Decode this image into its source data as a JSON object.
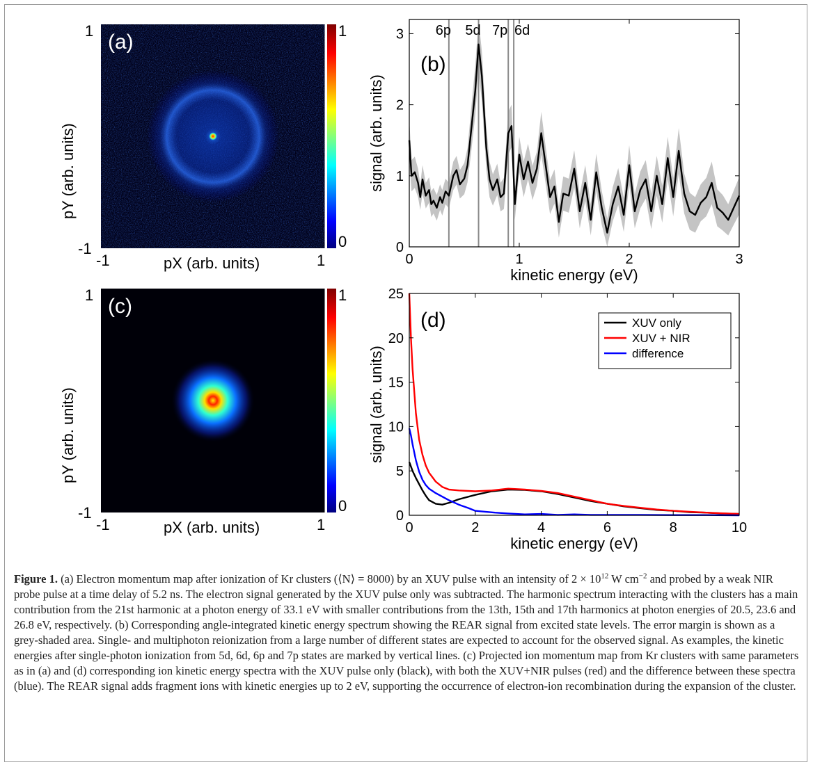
{
  "figure": {
    "panels": {
      "a": {
        "label": "(a)",
        "xlabel": "pX (arb. units)",
        "ylabel": "pY (arb. units)",
        "x_ticks": [
          "-1",
          "1"
        ],
        "y_ticks": [
          "1",
          "-1"
        ],
        "colorbar_ticks": [
          "1",
          "0"
        ]
      },
      "c": {
        "label": "(c)",
        "xlabel": "pX (arb. units)",
        "ylabel": "pY (arb. units)",
        "x_ticks": [
          "-1",
          "1"
        ],
        "y_ticks": [
          "1",
          "-1"
        ],
        "colorbar_ticks": [
          "1",
          "0"
        ]
      }
    },
    "caption": {
      "lead": "Figure 1.",
      "text_1": " (a) Electron momentum map after ionization of Kr clusters (⟨N⟩ = 8000) by an XUV pulse with an intensity of 2 × 10",
      "sup_1": "12",
      "text_2": " W cm",
      "sup_2": "−2",
      "text_3": " and probed by a weak NIR probe pulse at a time delay of 5.2 ns. The electron signal generated by the XUV pulse only was subtracted. The harmonic spectrum interacting with the clusters has a main contribution from the 21st harmonic at a photon energy of 33.1 eV with smaller contributions from the 13th, 15th and 17th harmonics at photon energies of 20.5, 23.6 and 26.8 eV, respectively. (b) Corresponding angle-integrated kinetic energy spectrum showing the REAR signal from excited state levels. The error margin is shown as a grey-shaded area. Single- and multiphoton reionization from a large number of different states are expected to account for the observed signal. As examples, the kinetic energies after single-photon ionization from 5d, 6d, 6p and 7p states are marked by vertical lines. (c) Projected ion momentum map from Kr clusters with same parameters as in (a) and (d) corresponding ion kinetic energy spectra with the XUV pulse only (black), with both the XUV+NIR pulses (red) and the difference between these spectra (blue). The REAR signal adds fragment ions with kinetic energies up to 2 eV, supporting the occurrence of electron-ion recombination during the expansion of the cluster."
    }
  },
  "chart_data": [
    {
      "panel": "b",
      "type": "line",
      "label": "(b)",
      "xlabel": "kinetic energy (eV)",
      "ylabel": "signal (arb. units)",
      "xlim": [
        0,
        3
      ],
      "ylim": [
        0,
        3.2
      ],
      "x_ticks": [
        0,
        1,
        2,
        3
      ],
      "y_ticks": [
        0,
        1,
        2,
        3
      ],
      "grid": false,
      "vertical_lines": [
        {
          "label": "6p",
          "x": 0.36
        },
        {
          "label": "5d",
          "x": 0.63
        },
        {
          "label": "7p",
          "x": 0.9
        },
        {
          "label": "6d",
          "x": 0.95
        }
      ],
      "series": [
        {
          "style": "line with grey error band",
          "color": "#000000",
          "band_color": "#c4c4c4",
          "x": [
            0,
            0.02,
            0.05,
            0.08,
            0.1,
            0.12,
            0.15,
            0.18,
            0.2,
            0.22,
            0.25,
            0.28,
            0.3,
            0.33,
            0.36,
            0.4,
            0.43,
            0.46,
            0.5,
            0.53,
            0.56,
            0.6,
            0.63,
            0.66,
            0.7,
            0.73,
            0.76,
            0.8,
            0.83,
            0.86,
            0.9,
            0.93,
            0.96,
            1.0,
            1.04,
            1.08,
            1.12,
            1.16,
            1.2,
            1.24,
            1.28,
            1.32,
            1.36,
            1.4,
            1.45,
            1.5,
            1.55,
            1.6,
            1.65,
            1.7,
            1.75,
            1.8,
            1.85,
            1.9,
            1.95,
            2.0,
            2.05,
            2.1,
            2.15,
            2.2,
            2.25,
            2.3,
            2.35,
            2.4,
            2.45,
            2.5,
            2.55,
            2.6,
            2.65,
            2.7,
            2.75,
            2.8,
            2.85,
            2.9,
            2.95,
            3.0
          ],
          "y": [
            1.5,
            1.0,
            1.05,
            0.9,
            0.7,
            0.95,
            0.72,
            0.8,
            0.6,
            0.65,
            0.55,
            0.7,
            0.62,
            0.78,
            0.72,
            1.0,
            1.08,
            0.88,
            0.96,
            1.15,
            1.6,
            2.2,
            2.85,
            2.4,
            1.4,
            0.95,
            0.8,
            0.95,
            0.7,
            0.75,
            1.6,
            1.7,
            0.6,
            1.3,
            0.95,
            1.2,
            0.9,
            1.1,
            1.6,
            1.15,
            0.7,
            0.85,
            0.35,
            0.75,
            0.72,
            1.1,
            0.5,
            0.9,
            0.38,
            1.05,
            0.55,
            0.2,
            0.6,
            0.85,
            0.45,
            1.15,
            0.5,
            0.8,
            0.95,
            0.5,
            1.0,
            0.6,
            1.25,
            0.7,
            1.35,
            0.75,
            0.5,
            0.45,
            0.62,
            0.7,
            0.9,
            0.55,
            0.48,
            0.38,
            0.55,
            0.72
          ],
          "err": [
            0.3,
            0.22,
            0.22,
            0.2,
            0.18,
            0.2,
            0.18,
            0.18,
            0.18,
            0.18,
            0.18,
            0.18,
            0.18,
            0.18,
            0.18,
            0.2,
            0.2,
            0.2,
            0.22,
            0.24,
            0.3,
            0.35,
            0.38,
            0.35,
            0.3,
            0.25,
            0.22,
            0.22,
            0.2,
            0.22,
            0.3,
            0.3,
            0.22,
            0.25,
            0.25,
            0.25,
            0.24,
            0.24,
            0.3,
            0.26,
            0.24,
            0.24,
            0.22,
            0.24,
            0.24,
            0.26,
            0.24,
            0.25,
            0.22,
            0.26,
            0.24,
            0.2,
            0.24,
            0.26,
            0.24,
            0.28,
            0.24,
            0.26,
            0.27,
            0.25,
            0.28,
            0.26,
            0.3,
            0.27,
            0.32,
            0.28,
            0.26,
            0.25,
            0.26,
            0.27,
            0.3,
            0.26,
            0.25,
            0.22,
            0.24,
            0.26
          ]
        }
      ]
    },
    {
      "panel": "d",
      "type": "line",
      "label": "(d)",
      "xlabel": "kinetic energy (eV)",
      "ylabel": "signal (arb. units)",
      "xlim": [
        0,
        10
      ],
      "ylim": [
        0,
        25
      ],
      "x_ticks": [
        0,
        2,
        4,
        6,
        8,
        10
      ],
      "y_ticks": [
        0,
        5,
        10,
        15,
        20,
        25
      ],
      "grid": false,
      "legend_position": "top-right",
      "series": [
        {
          "name": "XUV only",
          "color": "#000000",
          "x": [
            0,
            0.1,
            0.2,
            0.3,
            0.4,
            0.5,
            0.6,
            0.8,
            1.0,
            1.2,
            1.5,
            2.0,
            2.5,
            3.0,
            3.5,
            4.0,
            4.5,
            5.0,
            5.5,
            6.0,
            6.5,
            7.0,
            7.5,
            8.0,
            8.5,
            9.0,
            9.5,
            10.0
          ],
          "y": [
            6.0,
            5.0,
            4.2,
            3.5,
            2.8,
            2.2,
            1.7,
            1.3,
            1.2,
            1.4,
            1.8,
            2.3,
            2.7,
            2.9,
            2.85,
            2.7,
            2.4,
            2.0,
            1.6,
            1.3,
            1.0,
            0.8,
            0.6,
            0.5,
            0.35,
            0.3,
            0.2,
            0.15
          ]
        },
        {
          "name": "XUV + NIR",
          "color": "#ff0000",
          "x": [
            0,
            0.05,
            0.1,
            0.2,
            0.3,
            0.4,
            0.5,
            0.6,
            0.8,
            1.0,
            1.2,
            1.5,
            2.0,
            2.5,
            3.0,
            3.5,
            4.0,
            4.5,
            5.0,
            5.5,
            6.0,
            6.5,
            7.0,
            7.5,
            8.0,
            8.5,
            9.0,
            9.5,
            10.0
          ],
          "y": [
            25,
            20,
            16.5,
            11.5,
            8.5,
            6.8,
            5.6,
            4.8,
            3.8,
            3.2,
            2.9,
            2.8,
            2.7,
            2.8,
            3.0,
            2.9,
            2.75,
            2.5,
            2.1,
            1.7,
            1.3,
            1.05,
            0.85,
            0.65,
            0.5,
            0.4,
            0.3,
            0.22,
            0.15
          ]
        },
        {
          "name": "difference",
          "color": "#0000ff",
          "x": [
            0,
            0.05,
            0.1,
            0.2,
            0.3,
            0.4,
            0.5,
            0.6,
            0.8,
            1.0,
            1.2,
            1.5,
            1.8,
            2.0,
            2.3,
            2.6,
            3.0,
            3.5,
            4.0,
            4.5,
            5.0,
            5.5,
            6.0,
            7.0,
            8.0,
            9.0,
            10.0
          ],
          "y": [
            9.8,
            9.0,
            8.0,
            6.2,
            4.9,
            4.0,
            3.4,
            3.0,
            2.5,
            2.1,
            1.7,
            1.2,
            0.8,
            0.5,
            0.4,
            0.3,
            0.2,
            0.1,
            0.15,
            0.05,
            0.1,
            0.05,
            0.05,
            0.05,
            0.02,
            0.02,
            0.0
          ]
        }
      ]
    }
  ]
}
